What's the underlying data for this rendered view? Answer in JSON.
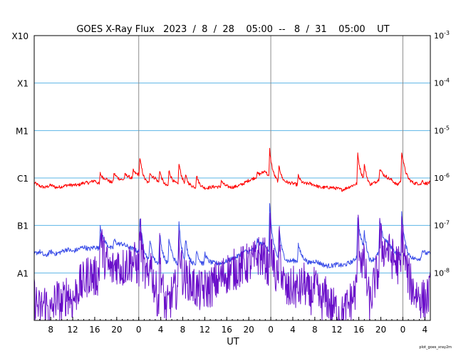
{
  "chart_data": {
    "type": "line",
    "title": "GOES X-Ray Flux   2023  /  8  /  28    05:00  --   8  /  31    05:00    UT",
    "xlabel": "UT",
    "footer": "plot_goes_xray2m",
    "x_start_hour": 5,
    "x_end_hour": 77,
    "ylim_log10": [
      -9,
      -3
    ],
    "left_axis_labels": [
      {
        "log10": -3,
        "label": "X10"
      },
      {
        "log10": -4,
        "label": "X1"
      },
      {
        "log10": -5,
        "label": "M1"
      },
      {
        "log10": -6,
        "label": "C1"
      },
      {
        "log10": -7,
        "label": "B1"
      },
      {
        "log10": -8,
        "label": "A1"
      }
    ],
    "right_axis_labels": [
      {
        "log10": -3,
        "base": "10",
        "exp": "-3"
      },
      {
        "log10": -4,
        "base": "10",
        "exp": "-4"
      },
      {
        "log10": -5,
        "base": "10",
        "exp": "-5"
      },
      {
        "log10": -6,
        "base": "10",
        "exp": "-6"
      },
      {
        "log10": -7,
        "base": "10",
        "exp": "-7"
      },
      {
        "log10": -8,
        "base": "10",
        "exp": "-8"
      }
    ],
    "grid_log10": [
      -4,
      -5,
      -6,
      -7,
      -8
    ],
    "day_boundaries_hours": [
      24,
      48,
      72
    ],
    "x_ticks": [
      {
        "hour": 8,
        "label": "8"
      },
      {
        "hour": 12,
        "label": "12"
      },
      {
        "hour": 16,
        "label": "16"
      },
      {
        "hour": 20,
        "label": "20"
      },
      {
        "hour": 24,
        "label": "0"
      },
      {
        "hour": 28,
        "label": "4"
      },
      {
        "hour": 32,
        "label": "8"
      },
      {
        "hour": 36,
        "label": "12"
      },
      {
        "hour": 40,
        "label": "16"
      },
      {
        "hour": 44,
        "label": "20"
      },
      {
        "hour": 48,
        "label": "0"
      },
      {
        "hour": 52,
        "label": "4"
      },
      {
        "hour": 56,
        "label": "8"
      },
      {
        "hour": 60,
        "label": "12"
      },
      {
        "hour": 64,
        "label": "16"
      },
      {
        "hour": 68,
        "label": "20"
      },
      {
        "hour": 72,
        "label": "0"
      },
      {
        "hour": 76,
        "label": "4"
      }
    ],
    "colors": {
      "grid": "#5bb4e6",
      "day_line": "#8c8c8c",
      "long_channel": "#ff0000",
      "short_channel_primary": "#3a4de8",
      "short_channel_secondary": "#6a0fc9"
    },
    "series": [
      {
        "key": "long",
        "color": "#ff0000",
        "points": [
          [
            5,
            -6.1
          ],
          [
            6,
            -6.17
          ],
          [
            7,
            -6.2
          ],
          [
            8,
            -6.15
          ],
          [
            9,
            -6.2
          ],
          [
            10,
            -6.18
          ],
          [
            11,
            -6.15
          ],
          [
            12,
            -6.15
          ],
          [
            13,
            -6.15
          ],
          [
            14,
            -6.1
          ],
          [
            15,
            -6.1
          ],
          [
            16,
            -6.05
          ],
          [
            17,
            -6.15
          ],
          [
            18,
            -6.05
          ],
          [
            19,
            -6.1
          ],
          [
            20,
            -6.05
          ],
          [
            21,
            -6.05
          ],
          [
            22,
            -6.0
          ],
          [
            23,
            -6.02
          ],
          [
            24,
            -5.95
          ],
          [
            25,
            -6.1
          ],
          [
            26,
            -6.15
          ],
          [
            27,
            -6.05
          ],
          [
            28,
            -6.15
          ],
          [
            29,
            -6.2
          ],
          [
            30,
            -6.15
          ],
          [
            31,
            -6.15
          ],
          [
            32,
            -6.17
          ],
          [
            33,
            -6.2
          ],
          [
            34,
            -6.2
          ],
          [
            35,
            -6.22
          ],
          [
            36,
            -6.23
          ],
          [
            37,
            -6.2
          ],
          [
            38,
            -6.18
          ],
          [
            39,
            -6.2
          ],
          [
            40,
            -6.2
          ],
          [
            41,
            -6.2
          ],
          [
            42,
            -6.17
          ],
          [
            43,
            -6.12
          ],
          [
            44,
            -6.05
          ],
          [
            45,
            -6.0
          ],
          [
            46,
            -5.95
          ],
          [
            47,
            -5.85
          ],
          [
            48,
            -6.05
          ],
          [
            49,
            -6.1
          ],
          [
            50,
            -6.15
          ],
          [
            51,
            -6.12
          ],
          [
            52,
            -6.12
          ],
          [
            53,
            -6.15
          ],
          [
            54,
            -6.15
          ],
          [
            55,
            -6.12
          ],
          [
            56,
            -6.15
          ],
          [
            57,
            -6.2
          ],
          [
            58,
            -6.2
          ],
          [
            59,
            -6.2
          ],
          [
            60,
            -6.22
          ],
          [
            61,
            -6.25
          ],
          [
            62,
            -6.2
          ],
          [
            63,
            -6.15
          ],
          [
            64,
            -6.1
          ],
          [
            65,
            -6.1
          ],
          [
            66,
            -6.2
          ],
          [
            67,
            -6.1
          ],
          [
            68,
            -6.0
          ],
          [
            69,
            -6.0
          ],
          [
            70,
            -6.05
          ],
          [
            71,
            -6.15
          ],
          [
            72,
            -6.0
          ],
          [
            73,
            -6.08
          ],
          [
            74,
            -6.12
          ],
          [
            75,
            -6.12
          ],
          [
            76,
            -6.15
          ],
          [
            77,
            -6.1
          ]
        ],
        "spikes": [
          [
            17,
            -5.9
          ],
          [
            19.5,
            -5.9
          ],
          [
            21.5,
            -5.93
          ],
          [
            23,
            -5.85
          ],
          [
            24.2,
            -5.6
          ],
          [
            26,
            -5.88
          ],
          [
            27.8,
            -5.85
          ],
          [
            29.5,
            -5.85
          ],
          [
            31.3,
            -5.7
          ],
          [
            32.5,
            -6.0
          ],
          [
            34.5,
            -5.95
          ],
          [
            39,
            -6.05
          ],
          [
            45.5,
            -5.9
          ],
          [
            47.8,
            -5.4
          ],
          [
            49.5,
            -5.75
          ],
          [
            53,
            -5.95
          ],
          [
            63.8,
            -5.5
          ],
          [
            65,
            -5.8
          ],
          [
            67.8,
            -5.8
          ],
          [
            71.8,
            -5.45
          ],
          [
            75.5,
            -6.05
          ]
        ]
      },
      {
        "key": "short_primary",
        "color": "#3a4de8",
        "points": [
          [
            5,
            -7.6
          ],
          [
            6,
            -7.55
          ],
          [
            7,
            -7.65
          ],
          [
            8,
            -7.55
          ],
          [
            9,
            -7.6
          ],
          [
            10,
            -7.55
          ],
          [
            11,
            -7.5
          ],
          [
            12,
            -7.55
          ],
          [
            13,
            -7.5
          ],
          [
            14,
            -7.45
          ],
          [
            15,
            -7.5
          ],
          [
            16,
            -7.45
          ],
          [
            17,
            -7.5
          ],
          [
            18,
            -7.45
          ],
          [
            19,
            -7.5
          ],
          [
            20,
            -7.45
          ],
          [
            21,
            -7.4
          ],
          [
            22,
            -7.45
          ],
          [
            23,
            -7.5
          ],
          [
            24,
            -7.55
          ],
          [
            25,
            -7.7
          ],
          [
            26,
            -7.8
          ],
          [
            27,
            -7.85
          ],
          [
            28,
            -7.8
          ],
          [
            29,
            -7.85
          ],
          [
            30,
            -7.8
          ],
          [
            31,
            -7.85
          ],
          [
            32,
            -7.85
          ],
          [
            33,
            -7.85
          ],
          [
            34,
            -7.85
          ],
          [
            35,
            -7.88
          ],
          [
            36,
            -7.85
          ],
          [
            37,
            -7.82
          ],
          [
            38,
            -7.8
          ],
          [
            39,
            -7.8
          ],
          [
            40,
            -7.75
          ],
          [
            41,
            -7.7
          ],
          [
            42,
            -7.65
          ],
          [
            43,
            -7.55
          ],
          [
            44,
            -7.55
          ],
          [
            45,
            -7.5
          ],
          [
            46,
            -7.45
          ],
          [
            47,
            -7.4
          ],
          [
            48,
            -7.7
          ],
          [
            49,
            -7.75
          ],
          [
            50,
            -7.8
          ],
          [
            51,
            -7.8
          ],
          [
            52,
            -7.75
          ],
          [
            53,
            -7.75
          ],
          [
            54,
            -7.75
          ],
          [
            55,
            -7.8
          ],
          [
            56,
            -7.75
          ],
          [
            57,
            -7.8
          ],
          [
            58,
            -7.85
          ],
          [
            59,
            -7.85
          ],
          [
            60,
            -7.82
          ],
          [
            61,
            -7.85
          ],
          [
            62,
            -7.8
          ],
          [
            63,
            -7.75
          ],
          [
            64,
            -7.6
          ],
          [
            65,
            -7.55
          ],
          [
            66,
            -7.8
          ],
          [
            67,
            -7.7
          ],
          [
            68,
            -7.5
          ],
          [
            69,
            -7.4
          ],
          [
            70,
            -7.5
          ],
          [
            71,
            -7.6
          ],
          [
            72,
            -7.65
          ],
          [
            73,
            -7.7
          ],
          [
            74,
            -7.72
          ],
          [
            75,
            -7.7
          ],
          [
            76,
            -7.65
          ],
          [
            77,
            -7.6
          ]
        ],
        "spikes": [
          [
            17,
            -7.0
          ],
          [
            19.5,
            -7.3
          ],
          [
            24.2,
            -6.85
          ],
          [
            26,
            -7.3
          ],
          [
            27.8,
            -7.2
          ],
          [
            29.5,
            -7.3
          ],
          [
            31.3,
            -6.95
          ],
          [
            32.5,
            -7.4
          ],
          [
            34.5,
            -7.5
          ],
          [
            36,
            -7.6
          ],
          [
            45.5,
            -7.3
          ],
          [
            47.8,
            -6.5
          ],
          [
            49.5,
            -7.1
          ],
          [
            53,
            -7.4
          ],
          [
            63.8,
            -6.8
          ],
          [
            65,
            -7.25
          ],
          [
            67.8,
            -6.9
          ],
          [
            71.8,
            -6.75
          ],
          [
            75.5,
            -7.5
          ]
        ]
      },
      {
        "key": "short_secondary",
        "color": "#6a0fc9",
        "points": [
          [
            5,
            -8.5
          ],
          [
            6,
            -8.8
          ],
          [
            7,
            -8.6
          ],
          [
            8,
            -8.9
          ],
          [
            9,
            -8.5
          ],
          [
            10,
            -8.7
          ],
          [
            11,
            -8.4
          ],
          [
            12,
            -8.6
          ],
          [
            13,
            -8.3
          ],
          [
            14,
            -8.2
          ],
          [
            15,
            -8.0
          ],
          [
            16,
            -8.1
          ],
          [
            17,
            -8.0
          ],
          [
            18,
            -7.9
          ],
          [
            19,
            -8.0
          ],
          [
            20,
            -7.8
          ],
          [
            21,
            -7.9
          ],
          [
            22,
            -7.8
          ],
          [
            23,
            -7.75
          ],
          [
            24,
            -7.9
          ],
          [
            25,
            -8.2
          ],
          [
            26,
            -8.3
          ],
          [
            27,
            -8.5
          ],
          [
            28,
            -8.7
          ],
          [
            29,
            -8.9
          ],
          [
            30,
            -8.5
          ],
          [
            31,
            -8.3
          ],
          [
            32,
            -8.4
          ],
          [
            33,
            -8.2
          ],
          [
            34,
            -8.3
          ],
          [
            35,
            -8.4
          ],
          [
            36,
            -8.35
          ],
          [
            37,
            -8.3
          ],
          [
            38,
            -8.2
          ],
          [
            39,
            -8.1
          ],
          [
            40,
            -8.0
          ],
          [
            41,
            -7.95
          ],
          [
            42,
            -7.9
          ],
          [
            43,
            -7.85
          ],
          [
            44,
            -7.8
          ],
          [
            45,
            -7.75
          ],
          [
            46,
            -7.7
          ],
          [
            47,
            -7.7
          ],
          [
            48,
            -8.1
          ],
          [
            49,
            -8.2
          ],
          [
            50,
            -8.4
          ],
          [
            51,
            -8.5
          ],
          [
            52,
            -8.3
          ],
          [
            53,
            -8.4
          ],
          [
            54,
            -8.2
          ],
          [
            55,
            -8.5
          ],
          [
            56,
            -8.3
          ],
          [
            57,
            -8.6
          ],
          [
            58,
            -8.5
          ],
          [
            59,
            -8.7
          ],
          [
            60,
            -8.8
          ],
          [
            61,
            -8.9
          ],
          [
            62,
            -8.7
          ],
          [
            63,
            -8.5
          ],
          [
            64,
            -8.2
          ],
          [
            65,
            -8.0
          ],
          [
            66,
            -8.7
          ],
          [
            67,
            -8.1
          ],
          [
            68,
            -7.85
          ],
          [
            69,
            -7.55
          ],
          [
            70,
            -7.7
          ],
          [
            71,
            -7.8
          ],
          [
            72,
            -8.0
          ],
          [
            73,
            -8.2
          ],
          [
            74,
            -8.4
          ],
          [
            75,
            -8.5
          ],
          [
            76,
            -8.6
          ],
          [
            77,
            -8.4
          ]
        ],
        "spikes": [
          [
            17,
            -7.1
          ],
          [
            24.2,
            -7.0
          ],
          [
            26,
            -7.5
          ],
          [
            27.8,
            -7.6
          ],
          [
            31.3,
            -7.2
          ],
          [
            45.5,
            -7.6
          ],
          [
            47.8,
            -7.0
          ],
          [
            49.5,
            -7.4
          ],
          [
            63.8,
            -7.0
          ],
          [
            67.8,
            -7.2
          ],
          [
            71.8,
            -7.0
          ]
        ]
      }
    ]
  }
}
